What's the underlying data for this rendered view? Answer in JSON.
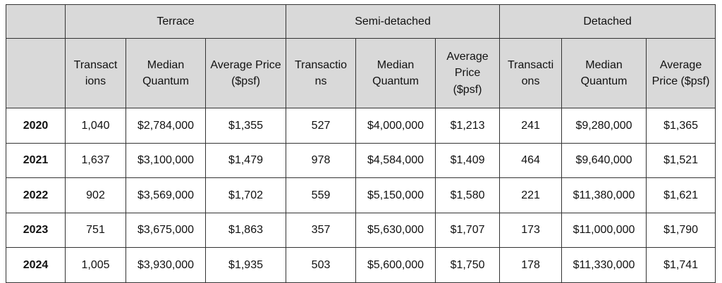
{
  "table": {
    "groups": [
      "Terrace",
      "Semi-detached",
      "Detached"
    ],
    "subheaders": [
      [
        "Transactions",
        "Median Quantum",
        "Average Price ($psf)"
      ],
      [
        "Transactions",
        "Median Quantum",
        "Average Price ($psf)"
      ],
      [
        "Transactions",
        "Median Quantum",
        "Average Price ($psf)"
      ]
    ],
    "rows": [
      [
        "2020",
        "1,040",
        "$2,784,000",
        "$1,355",
        "527",
        "$4,000,000",
        "$1,213",
        "241",
        "$9,280,000",
        "$1,365"
      ],
      [
        "2021",
        "1,637",
        "$3,100,000",
        "$1,479",
        "978",
        "$4,584,000",
        "$1,409",
        "464",
        "$9,640,000",
        "$1,521"
      ],
      [
        "2022",
        "902",
        "$3,569,000",
        "$1,702",
        "559",
        "$5,150,000",
        "$1,580",
        "221",
        "$11,380,000",
        "$1,621"
      ],
      [
        "2023",
        "751",
        "$3,675,000",
        "$1,863",
        "357",
        "$5,630,000",
        "$1,707",
        "173",
        "$11,000,000",
        "$1,790"
      ],
      [
        "2024",
        "1,005",
        "$3,930,000",
        "$1,935",
        "503",
        "$5,600,000",
        "$1,750",
        "178",
        "$11,330,000",
        "$1,741"
      ]
    ]
  }
}
